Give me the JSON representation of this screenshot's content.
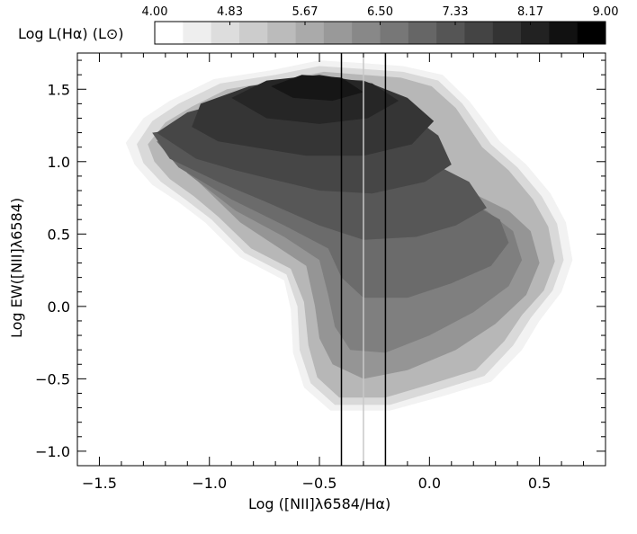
{
  "chart_data": {
    "type": "heatmap",
    "description_xlabel": "Log ([NII]λ6584/Hα)",
    "xlabel": "Log ([NII]λ6584/Hα)",
    "ylabel": "Log EW([NII]λ6584)",
    "xlim": [
      -1.6,
      0.8
    ],
    "ylim": [
      -1.1,
      1.75
    ],
    "x_ticks": [
      {
        "value": -1.5,
        "label": "−1.5"
      },
      {
        "value": -1.0,
        "label": "−1.0"
      },
      {
        "value": -0.5,
        "label": "−0.5"
      },
      {
        "value": 0.0,
        "label": "0.0"
      },
      {
        "value": 0.5,
        "label": "0.5"
      }
    ],
    "y_ticks": [
      {
        "value": 1.5,
        "label": "1.5"
      },
      {
        "value": 1.0,
        "label": "1.0"
      },
      {
        "value": 0.5,
        "label": "0.5"
      },
      {
        "value": 0.0,
        "label": "0.0"
      },
      {
        "value": -0.5,
        "label": "−0.5"
      },
      {
        "value": -1.0,
        "label": "−1.0"
      }
    ],
    "colorbar": {
      "label": "Log L(Hα) (L⊙)",
      "range": [
        4.0,
        9.0
      ],
      "tick_labels": [
        "4.00",
        "4.83",
        "5.67",
        "6.50",
        "7.33",
        "8.17",
        "9.00"
      ],
      "levels": 16,
      "colormap": "white-to-black"
    },
    "vertical_lines": [
      {
        "x": -0.4,
        "color": "#000000"
      },
      {
        "x": -0.3,
        "color": "#c8c8c8"
      },
      {
        "x": -0.2,
        "color": "#000000"
      }
    ],
    "contour_levels": [
      {
        "level": 1,
        "color": "#f2f2f2",
        "region": [
          [
            -1.38,
            1.13
          ],
          [
            -1.3,
            1.3
          ],
          [
            -1.18,
            1.42
          ],
          [
            -0.98,
            1.57
          ],
          [
            -0.72,
            1.63
          ],
          [
            -0.5,
            1.7
          ],
          [
            -0.3,
            1.68
          ],
          [
            -0.12,
            1.66
          ],
          [
            0.06,
            1.6
          ],
          [
            0.18,
            1.42
          ],
          [
            0.32,
            1.14
          ],
          [
            0.44,
            0.98
          ],
          [
            0.55,
            0.78
          ],
          [
            0.62,
            0.58
          ],
          [
            0.65,
            0.32
          ],
          [
            0.6,
            0.1
          ],
          [
            0.5,
            -0.1
          ],
          [
            0.42,
            -0.3
          ],
          [
            0.28,
            -0.52
          ],
          [
            0.06,
            -0.62
          ],
          [
            -0.18,
            -0.72
          ],
          [
            -0.45,
            -0.72
          ],
          [
            -0.57,
            -0.56
          ],
          [
            -0.62,
            -0.32
          ],
          [
            -0.63,
            -0.02
          ],
          [
            -0.66,
            0.18
          ],
          [
            -0.86,
            0.34
          ],
          [
            -1.02,
            0.58
          ],
          [
            -1.14,
            0.72
          ],
          [
            -1.26,
            0.84
          ],
          [
            -1.34,
            0.98
          ]
        ]
      },
      {
        "level": 2,
        "color": "#d9d9d9",
        "region": [
          [
            -1.33,
            1.12
          ],
          [
            -1.26,
            1.28
          ],
          [
            -1.14,
            1.4
          ],
          [
            -0.95,
            1.54
          ],
          [
            -0.7,
            1.6
          ],
          [
            -0.5,
            1.66
          ],
          [
            -0.3,
            1.64
          ],
          [
            -0.12,
            1.62
          ],
          [
            0.04,
            1.56
          ],
          [
            0.15,
            1.4
          ],
          [
            0.28,
            1.12
          ],
          [
            0.4,
            0.96
          ],
          [
            0.51,
            0.76
          ],
          [
            0.58,
            0.57
          ],
          [
            0.61,
            0.32
          ],
          [
            0.56,
            0.11
          ],
          [
            0.46,
            -0.08
          ],
          [
            0.38,
            -0.27
          ],
          [
            0.25,
            -0.48
          ],
          [
            0.04,
            -0.58
          ],
          [
            -0.18,
            -0.68
          ],
          [
            -0.43,
            -0.68
          ],
          [
            -0.54,
            -0.53
          ],
          [
            -0.59,
            -0.3
          ],
          [
            -0.6,
            0.0
          ],
          [
            -0.65,
            0.22
          ],
          [
            -0.84,
            0.37
          ],
          [
            -0.99,
            0.6
          ],
          [
            -1.11,
            0.74
          ],
          [
            -1.22,
            0.86
          ],
          [
            -1.3,
            0.99
          ]
        ]
      },
      {
        "level": 3,
        "color": "#b7b7b7",
        "region": [
          [
            -1.28,
            1.12
          ],
          [
            -1.2,
            1.27
          ],
          [
            -1.08,
            1.38
          ],
          [
            -0.92,
            1.5
          ],
          [
            -0.68,
            1.56
          ],
          [
            -0.48,
            1.62
          ],
          [
            -0.3,
            1.6
          ],
          [
            -0.13,
            1.58
          ],
          [
            0.01,
            1.52
          ],
          [
            0.12,
            1.37
          ],
          [
            0.24,
            1.1
          ],
          [
            0.36,
            0.94
          ],
          [
            0.47,
            0.74
          ],
          [
            0.54,
            0.55
          ],
          [
            0.57,
            0.31
          ],
          [
            0.52,
            0.11
          ],
          [
            0.42,
            -0.06
          ],
          [
            0.34,
            -0.24
          ],
          [
            0.21,
            -0.44
          ],
          [
            0.0,
            -0.54
          ],
          [
            -0.2,
            -0.63
          ],
          [
            -0.41,
            -0.63
          ],
          [
            -0.51,
            -0.49
          ],
          [
            -0.55,
            -0.27
          ],
          [
            -0.57,
            0.03
          ],
          [
            -0.63,
            0.26
          ],
          [
            -0.81,
            0.4
          ],
          [
            -0.96,
            0.62
          ],
          [
            -1.07,
            0.76
          ],
          [
            -1.18,
            0.88
          ],
          [
            -1.25,
            1.0
          ]
        ]
      },
      {
        "level": 4,
        "color": "#959595",
        "region": [
          [
            -0.56,
            0.28
          ],
          [
            -0.52,
            0.0
          ],
          [
            -0.5,
            -0.22
          ],
          [
            -0.44,
            -0.4
          ],
          [
            -0.3,
            -0.5
          ],
          [
            -0.1,
            -0.44
          ],
          [
            0.12,
            -0.3
          ],
          [
            0.3,
            -0.12
          ],
          [
            0.44,
            0.08
          ],
          [
            0.5,
            0.3
          ],
          [
            0.46,
            0.52
          ],
          [
            0.36,
            0.66
          ],
          [
            0.2,
            0.78
          ],
          [
            0.0,
            0.9
          ],
          [
            -0.3,
            1.0
          ],
          [
            -0.62,
            1.06
          ],
          [
            -0.92,
            1.08
          ],
          [
            -1.12,
            1.06
          ],
          [
            -1.05,
            0.86
          ],
          [
            -0.86,
            0.58
          ]
        ]
      },
      {
        "level": 5,
        "color": "#7f7f7f",
        "region": [
          [
            -0.5,
            0.32
          ],
          [
            -0.46,
            0.08
          ],
          [
            -0.43,
            -0.14
          ],
          [
            -0.36,
            -0.3
          ],
          [
            -0.2,
            -0.32
          ],
          [
            0.0,
            -0.2
          ],
          [
            0.2,
            -0.04
          ],
          [
            0.36,
            0.14
          ],
          [
            0.42,
            0.32
          ],
          [
            0.38,
            0.52
          ],
          [
            0.26,
            0.66
          ],
          [
            0.1,
            0.78
          ],
          [
            -0.1,
            0.9
          ],
          [
            -0.4,
            1.02
          ],
          [
            -0.7,
            1.08
          ],
          [
            -0.98,
            1.1
          ],
          [
            -1.18,
            1.1
          ],
          [
            -1.1,
            0.92
          ],
          [
            -0.88,
            0.66
          ],
          [
            -0.66,
            0.48
          ]
        ]
      },
      {
        "level": 6,
        "color": "#6b6b6b",
        "region": [
          [
            -0.46,
            0.4
          ],
          [
            -0.4,
            0.2
          ],
          [
            -0.3,
            0.06
          ],
          [
            -0.1,
            0.06
          ],
          [
            0.1,
            0.16
          ],
          [
            0.28,
            0.28
          ],
          [
            0.36,
            0.44
          ],
          [
            0.32,
            0.6
          ],
          [
            0.18,
            0.72
          ],
          [
            0.0,
            0.84
          ],
          [
            -0.3,
            0.98
          ],
          [
            -0.62,
            1.1
          ],
          [
            -0.96,
            1.14
          ],
          [
            -1.24,
            1.14
          ],
          [
            -1.14,
            0.96
          ],
          [
            -0.9,
            0.74
          ],
          [
            -0.66,
            0.56
          ]
        ]
      },
      {
        "level": 7,
        "color": "#575757",
        "region": [
          [
            -0.5,
            0.56
          ],
          [
            -0.3,
            0.46
          ],
          [
            -0.06,
            0.48
          ],
          [
            0.12,
            0.56
          ],
          [
            0.26,
            0.68
          ],
          [
            0.18,
            0.86
          ],
          [
            0.0,
            1.0
          ],
          [
            -0.3,
            1.14
          ],
          [
            -0.62,
            1.24
          ],
          [
            -0.96,
            1.26
          ],
          [
            -1.26,
            1.2
          ],
          [
            -1.18,
            1.02
          ],
          [
            -0.96,
            0.86
          ],
          [
            -0.74,
            0.72
          ]
        ]
      },
      {
        "level": 8,
        "color": "#464646",
        "region": [
          [
            -0.72,
            0.88
          ],
          [
            -0.5,
            0.8
          ],
          [
            -0.26,
            0.78
          ],
          [
            -0.02,
            0.86
          ],
          [
            0.1,
            0.98
          ],
          [
            0.04,
            1.18
          ],
          [
            -0.14,
            1.38
          ],
          [
            -0.36,
            1.5
          ],
          [
            -0.6,
            1.5
          ],
          [
            -0.86,
            1.44
          ],
          [
            -1.1,
            1.34
          ],
          [
            -1.24,
            1.2
          ],
          [
            -1.06,
            1.02
          ],
          [
            -0.88,
            0.94
          ]
        ]
      },
      {
        "level": 9,
        "color": "#353535",
        "region": [
          [
            -0.8,
            1.1
          ],
          [
            -0.56,
            1.04
          ],
          [
            -0.3,
            1.04
          ],
          [
            -0.08,
            1.12
          ],
          [
            0.02,
            1.28
          ],
          [
            -0.1,
            1.44
          ],
          [
            -0.3,
            1.56
          ],
          [
            -0.56,
            1.58
          ],
          [
            -0.82,
            1.52
          ],
          [
            -1.04,
            1.4
          ],
          [
            -1.08,
            1.24
          ],
          [
            -0.96,
            1.14
          ]
        ]
      },
      {
        "level": 10,
        "color": "#262626",
        "region": [
          [
            -0.74,
            1.3
          ],
          [
            -0.5,
            1.26
          ],
          [
            -0.28,
            1.3
          ],
          [
            -0.14,
            1.42
          ],
          [
            -0.26,
            1.54
          ],
          [
            -0.5,
            1.6
          ],
          [
            -0.74,
            1.56
          ],
          [
            -0.9,
            1.44
          ]
        ]
      },
      {
        "level": 11,
        "color": "#161616",
        "region": [
          [
            -0.62,
            1.44
          ],
          [
            -0.44,
            1.42
          ],
          [
            -0.3,
            1.48
          ],
          [
            -0.4,
            1.58
          ],
          [
            -0.58,
            1.6
          ],
          [
            -0.72,
            1.52
          ]
        ]
      }
    ]
  }
}
